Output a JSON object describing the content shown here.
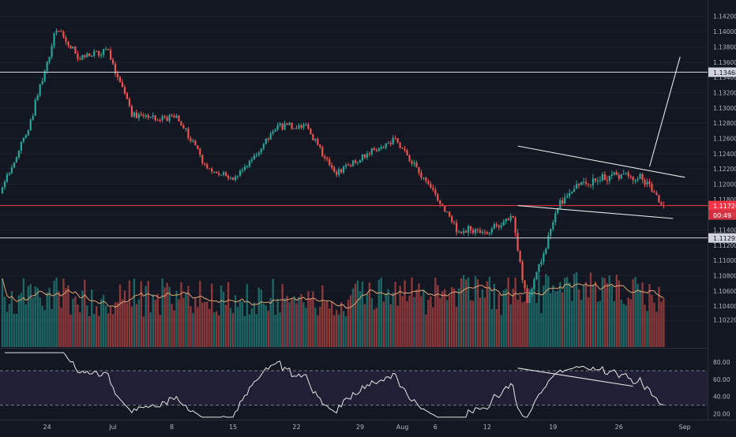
{
  "chart_data": {
    "type": "candlestick",
    "symbol_pair": "EURUSD-like",
    "price_axis": {
      "range": [
        1.1003,
        1.1428
      ],
      "ticks": [
        "1.14200",
        "1.14000",
        "1.13800",
        "1.13600",
        "1.13400",
        "1.13200",
        "1.13000",
        "1.12800",
        "1.12600",
        "1.12400",
        "1.12200",
        "1.12000",
        "1.11800",
        "1.11600",
        "1.11400",
        "1.11200",
        "1.11000",
        "1.10800",
        "1.10600",
        "1.10400",
        "1.10220"
      ]
    },
    "time_axis": {
      "ticks": [
        "24",
        "Jul",
        "8",
        "15",
        "22",
        "29",
        "Aug",
        "6",
        "12",
        "19",
        "26",
        "Sep"
      ]
    },
    "levels": [
      {
        "label": "1.13468",
        "price": 1.13468,
        "color": "#d1d4dc",
        "kind": "horizontal"
      },
      {
        "label": "1.11295",
        "price": 1.11295,
        "color": "#d1d4dc",
        "kind": "horizontal"
      },
      {
        "label": "1.11720",
        "price": 1.1172,
        "color": "#f23645",
        "kind": "last-price",
        "countdown": "00:49"
      }
    ],
    "trendlines": [
      {
        "from": {
          "bar": 219,
          "price": 1.125
        },
        "to": {
          "bar": 290,
          "price": 1.1209
        }
      },
      {
        "from": {
          "bar": 219,
          "price": 1.1172
        },
        "to": {
          "bar": 285,
          "price": 1.1155
        }
      },
      {
        "from": {
          "bar": 275,
          "price": 1.1223
        },
        "to": {
          "bar": 288,
          "price": 1.1367
        }
      }
    ],
    "rsi": {
      "range": [
        15,
        92
      ],
      "ticks": [
        "80.00",
        "60.00",
        "40.00",
        "20.00"
      ],
      "upper_band": 70,
      "lower_band": 30,
      "trendline": {
        "from": {
          "bar": 219,
          "value": 73
        },
        "to": {
          "bar": 268,
          "value": 52
        }
      }
    },
    "segments": [
      {
        "bars": 12,
        "start": 1.1188,
        "end": 1.1273,
        "vol": 0.4
      },
      {
        "bars": 12,
        "start": 1.1273,
        "end": 1.1405,
        "vol": 0.5
      },
      {
        "bars": 10,
        "start": 1.1405,
        "end": 1.1365,
        "vol": 0.45
      },
      {
        "bars": 12,
        "start": 1.1365,
        "end": 1.1375,
        "vol": 0.4
      },
      {
        "bars": 10,
        "start": 1.1375,
        "end": 1.129,
        "vol": 0.45
      },
      {
        "bars": 20,
        "start": 1.129,
        "end": 1.1286,
        "vol": 0.4
      },
      {
        "bars": 12,
        "start": 1.1286,
        "end": 1.122,
        "vol": 0.4
      },
      {
        "bars": 12,
        "start": 1.122,
        "end": 1.1208,
        "vol": 0.35
      },
      {
        "bars": 18,
        "start": 1.1208,
        "end": 1.1275,
        "vol": 0.4
      },
      {
        "bars": 12,
        "start": 1.1275,
        "end": 1.1278,
        "vol": 0.4
      },
      {
        "bars": 12,
        "start": 1.1278,
        "end": 1.1212,
        "vol": 0.4
      },
      {
        "bars": 14,
        "start": 1.1212,
        "end": 1.124,
        "vol": 0.35
      },
      {
        "bars": 12,
        "start": 1.124,
        "end": 1.126,
        "vol": 0.4
      },
      {
        "bars": 14,
        "start": 1.126,
        "end": 1.12,
        "vol": 0.4
      },
      {
        "bars": 12,
        "start": 1.12,
        "end": 1.114,
        "vol": 0.45
      },
      {
        "bars": 14,
        "start": 1.114,
        "end": 1.114,
        "vol": 0.5
      },
      {
        "bars": 10,
        "start": 1.114,
        "end": 1.1155,
        "vol": 0.45
      },
      {
        "bars": 6,
        "start": 1.1155,
        "end": 1.1042,
        "vol": 0.55
      },
      {
        "bars": 14,
        "start": 1.1042,
        "end": 1.1178,
        "vol": 0.5
      },
      {
        "bars": 8,
        "start": 1.1178,
        "end": 1.12,
        "vol": 0.6
      },
      {
        "bars": 14,
        "start": 1.12,
        "end": 1.1212,
        "vol": 0.6
      },
      {
        "bars": 12,
        "start": 1.1212,
        "end": 1.121,
        "vol": 0.55
      },
      {
        "bars": 10,
        "start": 1.121,
        "end": 1.1172,
        "vol": 0.5
      }
    ]
  }
}
